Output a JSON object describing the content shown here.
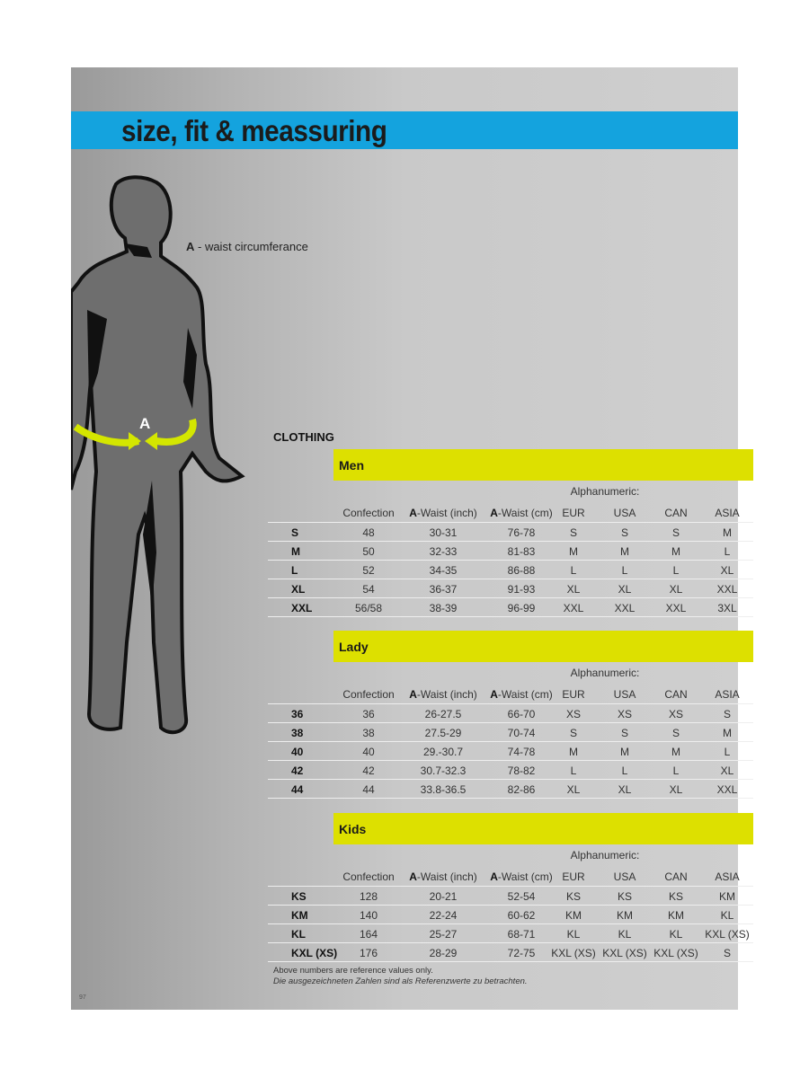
{
  "title": "size, fit & meassuring",
  "legend": {
    "key": "A",
    "text": " - waist circumferance"
  },
  "figure_marker": "A",
  "clothing_label": "CLOTHING",
  "columns": {
    "confection": "Confection",
    "waist_inch_key": "A",
    "waist_inch": "-Waist (inch)",
    "waist_cm_key": "A",
    "waist_cm": "-Waist (cm)",
    "eur": "EUR",
    "usa": "USA",
    "can": "CAN",
    "asia": "ASIA"
  },
  "alphanumeric_label": "Alphanumeric:",
  "sections": [
    {
      "title": "Men",
      "rows": [
        [
          "S",
          "48",
          "30-31",
          "76-78",
          "S",
          "S",
          "S",
          "M"
        ],
        [
          "M",
          "50",
          "32-33",
          "81-83",
          "M",
          "M",
          "M",
          "L"
        ],
        [
          "L",
          "52",
          "34-35",
          "86-88",
          "L",
          "L",
          "L",
          "XL"
        ],
        [
          "XL",
          "54",
          "36-37",
          "91-93",
          "XL",
          "XL",
          "XL",
          "XXL"
        ],
        [
          "XXL",
          "56/58",
          "38-39",
          "96-99",
          "XXL",
          "XXL",
          "XXL",
          "3XL"
        ]
      ]
    },
    {
      "title": "Lady",
      "rows": [
        [
          "36",
          "36",
          "26-27.5",
          "66-70",
          "XS",
          "XS",
          "XS",
          "S"
        ],
        [
          "38",
          "38",
          "27.5-29",
          "70-74",
          "S",
          "S",
          "S",
          "M"
        ],
        [
          "40",
          "40",
          "29.-30.7",
          "74-78",
          "M",
          "M",
          "M",
          "L"
        ],
        [
          "42",
          "42",
          "30.7-32.3",
          "78-82",
          "L",
          "L",
          "L",
          "XL"
        ],
        [
          "44",
          "44",
          "33.8-36.5",
          "82-86",
          "XL",
          "XL",
          "XL",
          "XXL"
        ]
      ]
    },
    {
      "title": "Kids",
      "rows": [
        [
          "KS",
          "128",
          "20-21",
          "52-54",
          "KS",
          "KS",
          "KS",
          "KM"
        ],
        [
          "KM",
          "140",
          "22-24",
          "60-62",
          "KM",
          "KM",
          "KM",
          "KL"
        ],
        [
          "KL",
          "164",
          "25-27",
          "68-71",
          "KL",
          "KL",
          "KL",
          "KXL (XS)"
        ],
        [
          "KXL (XS)",
          "176",
          "28-29",
          "72-75",
          "KXL (XS)",
          "KXL (XS)",
          "KXL (XS)",
          "S"
        ]
      ]
    }
  ],
  "notes": {
    "en": "Above numbers are reference values only.",
    "de": "Die ausgezeichneten Zahlen sind als Referenzwerte zu betrachten."
  },
  "page_number": "97",
  "colors": {
    "band": "#14a3de",
    "section_header": "#dde000",
    "arrow": "#d4e600",
    "figure": "#6e6e6e"
  }
}
